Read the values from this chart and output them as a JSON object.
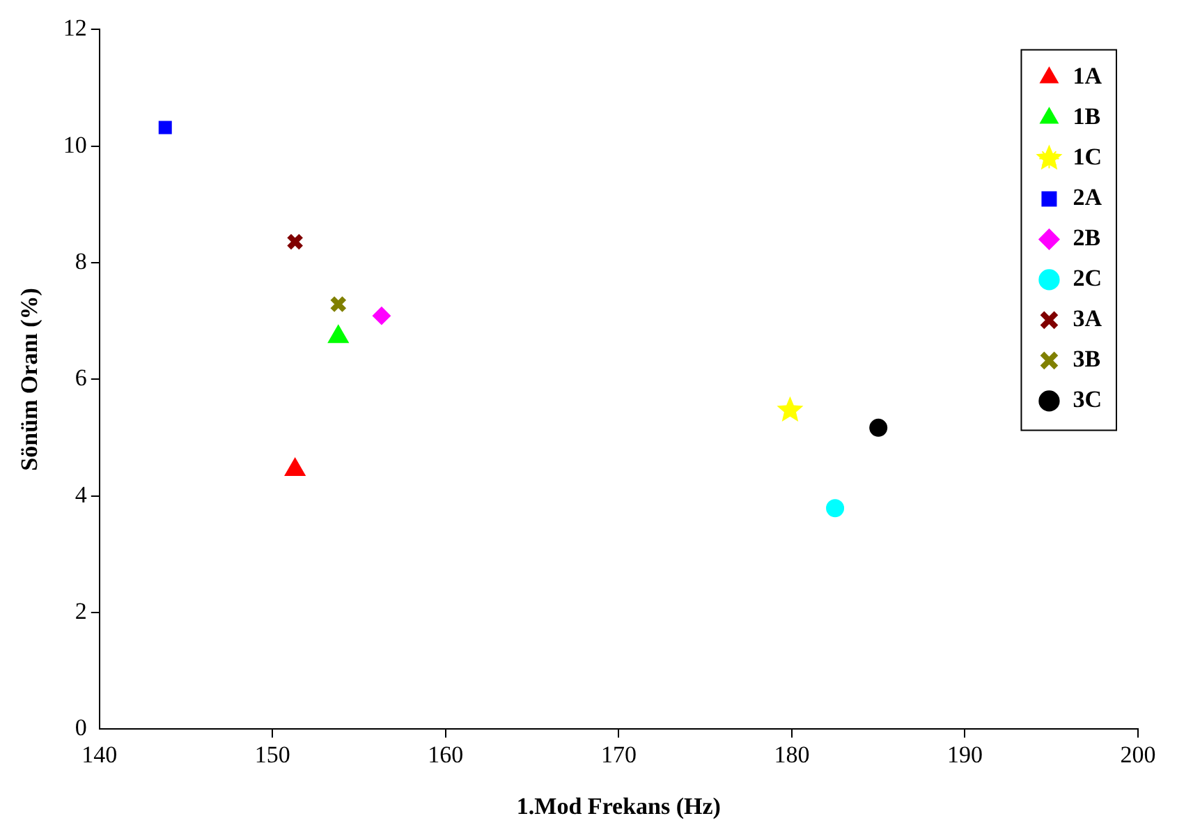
{
  "chart_data": {
    "type": "scatter",
    "xlabel": "1.Mod Frekans (Hz)",
    "ylabel": "Sönüm Oranı (%)",
    "xlim": [
      140,
      200
    ],
    "xticks": [
      140,
      150,
      160,
      170,
      180,
      190,
      200
    ],
    "ylim": [
      0,
      12
    ],
    "yticks": [
      0,
      2,
      4,
      6,
      8,
      10,
      12
    ],
    "grid": false,
    "legend": "top right",
    "series": [
      {
        "name": "1A",
        "color": "#ff0000",
        "marker": "triangle",
        "x": [
          151.3
        ],
        "values": [
          4.45
        ]
      },
      {
        "name": "1B",
        "color": "#00ff00",
        "marker": "triangle",
        "x": [
          153.8
        ],
        "values": [
          6.73
        ]
      },
      {
        "name": "1C",
        "color": "#ffff00",
        "marker": "star",
        "x": [
          179.9
        ],
        "values": [
          5.47
        ]
      },
      {
        "name": "2A",
        "color": "#0000ff",
        "marker": "square",
        "x": [
          143.8
        ],
        "values": [
          10.32
        ]
      },
      {
        "name": "2B",
        "color": "#ff00ff",
        "marker": "diamond",
        "x": [
          156.3
        ],
        "values": [
          7.09
        ]
      },
      {
        "name": "2C",
        "color": "#00ffff",
        "marker": "circle",
        "x": [
          182.5
        ],
        "values": [
          3.79
        ]
      },
      {
        "name": "3A",
        "color": "#800000",
        "marker": "cross",
        "x": [
          151.3
        ],
        "values": [
          8.36
        ]
      },
      {
        "name": "3B",
        "color": "#808000",
        "marker": "cross",
        "x": [
          153.8
        ],
        "values": [
          7.29
        ]
      },
      {
        "name": "3C",
        "color": "#000000",
        "marker": "circle",
        "x": [
          185.0
        ],
        "values": [
          5.17
        ]
      }
    ]
  }
}
